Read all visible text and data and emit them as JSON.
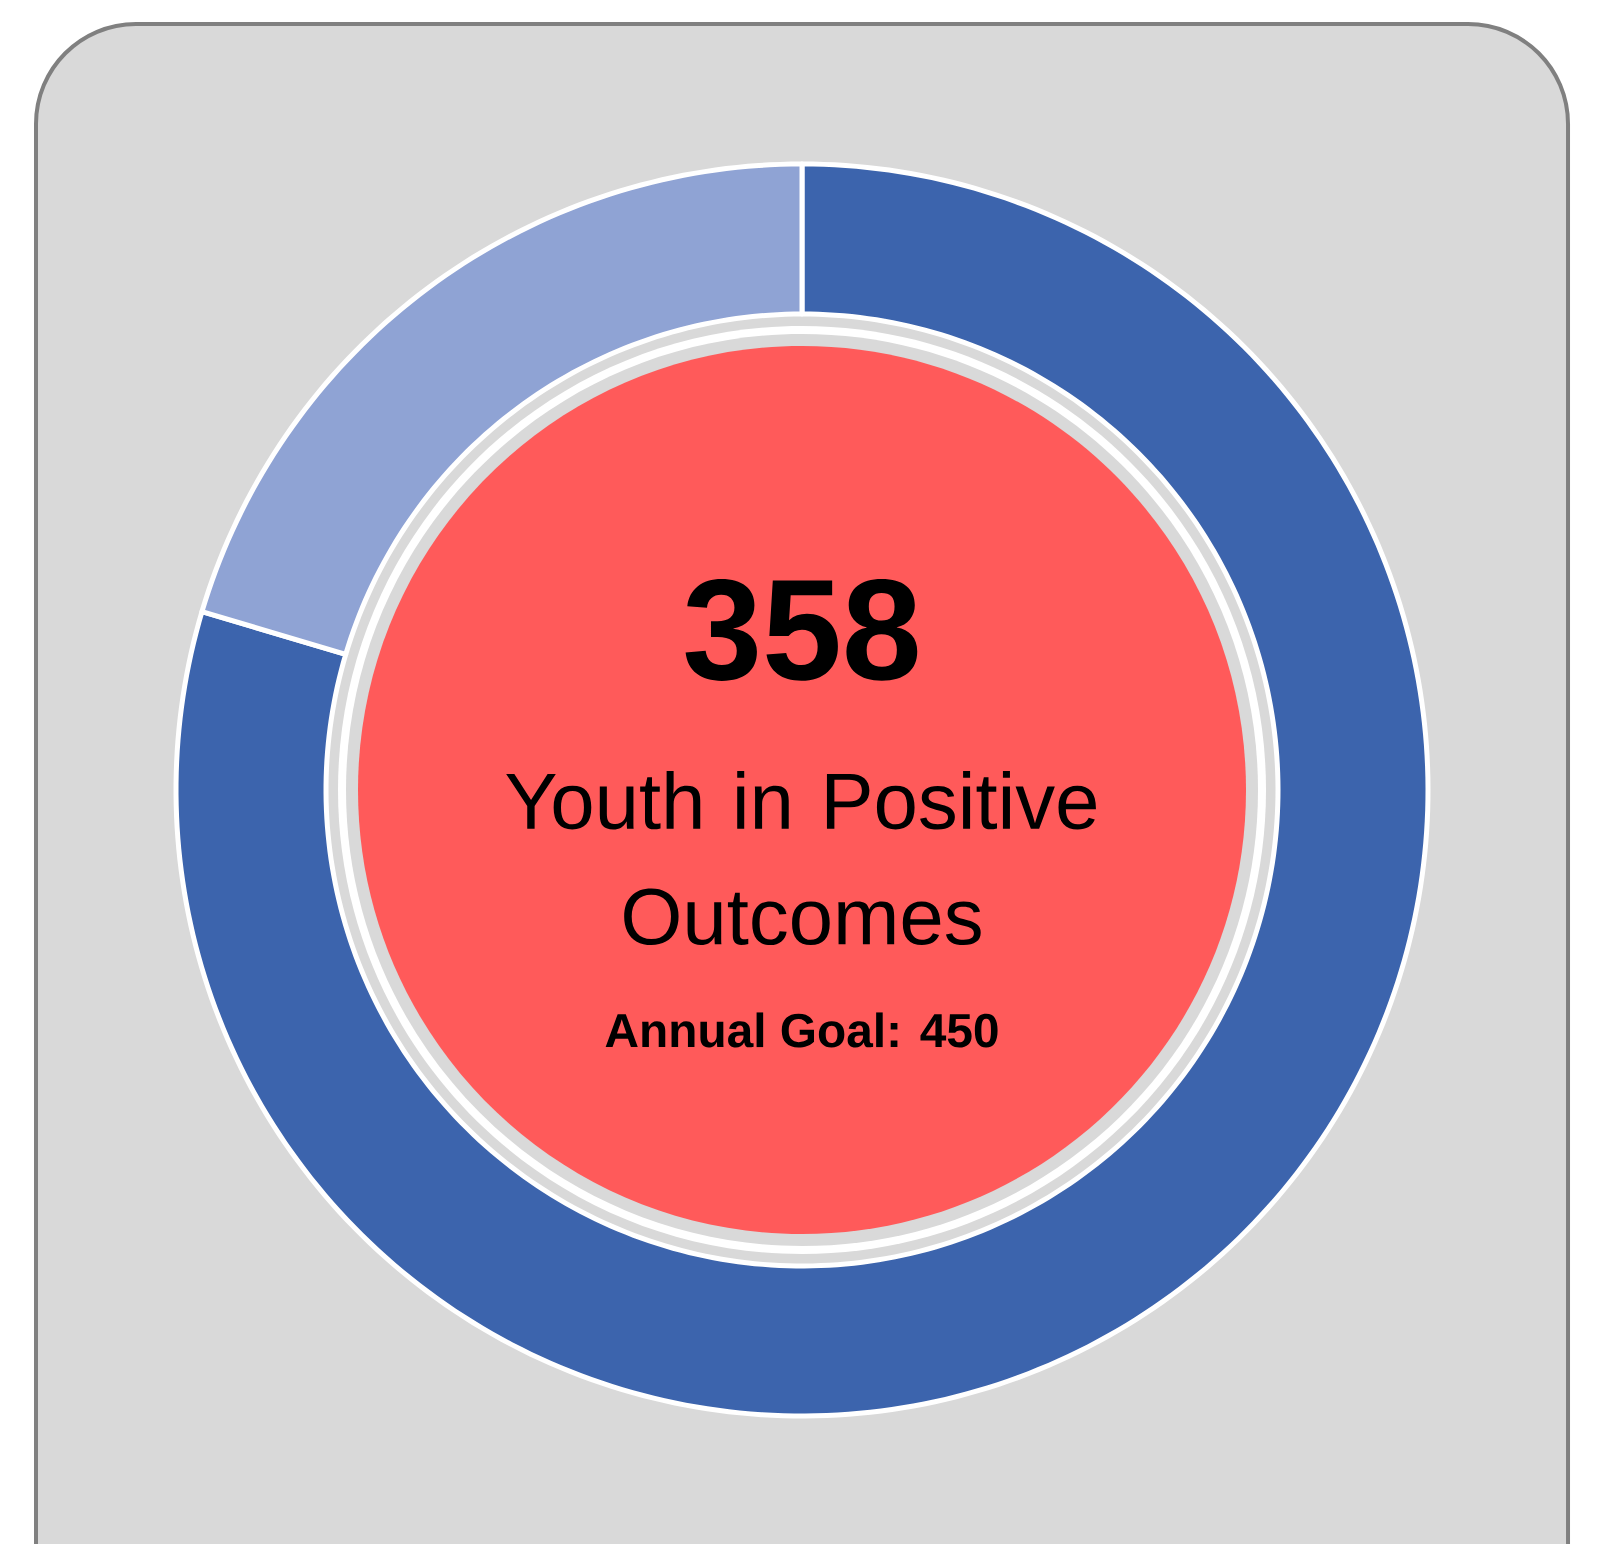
{
  "chart_data": {
    "type": "donut",
    "title": "Youth in Positive Outcomes",
    "annotations": [
      "358",
      "Annual Goal: 450"
    ],
    "categories": [
      null,
      null
    ],
    "values": [
      79.6,
      20.4
    ],
    "colors": [
      "#3c64ad",
      "#8fa3d4"
    ]
  }
}
